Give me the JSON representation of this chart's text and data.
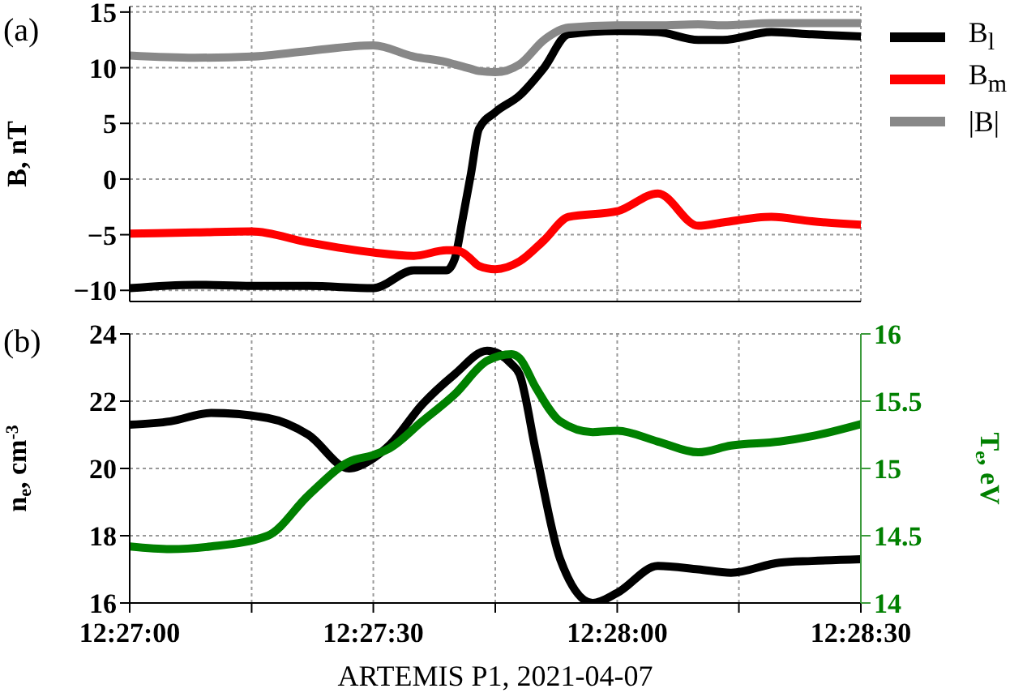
{
  "chart_data": [
    {
      "type": "line",
      "ylabel": "B, nT",
      "annotations": [
        "(a)"
      ],
      "x": [
        12.45,
        12.45222,
        12.45417,
        12.45611,
        12.45833,
        12.45972,
        12.46083,
        12.46111,
        12.46139,
        12.46167,
        12.46194,
        12.4625,
        12.46333,
        12.46417,
        12.465,
        12.46667,
        12.46806,
        12.46944,
        12.47028,
        12.47194,
        12.47333,
        12.475
      ],
      "series": [
        {
          "name": "B$_{l}$",
          "color": "#000000",
          "values": [
            -9.8,
            -9.5,
            -9.6,
            -9.6,
            -9.8,
            -8.2,
            -8.2,
            -7.2,
            -3.5,
            0.5,
            4.5,
            6,
            7.5,
            10,
            13,
            13.3,
            13.2,
            12.5,
            12.5,
            13.2,
            13,
            12.8
          ]
        },
        {
          "name": "B$_{m}$",
          "color": "#ff0000",
          "values": [
            -4.9,
            -4.8,
            -4.7,
            -5.7,
            -6.6,
            -6.9,
            -6.4,
            -6.4,
            -6.6,
            -7.2,
            -7.8,
            -8.1,
            -7.4,
            -5.5,
            -3.4,
            -2.9,
            -1.3,
            -4.2,
            -3.9,
            -3.4,
            -3.8,
            -4.1
          ]
        },
        {
          "name": "|B|",
          "color": "#888888",
          "values": [
            11.1,
            10.9,
            11,
            11.5,
            12,
            11,
            10.5,
            10.3,
            10.1,
            9.9,
            9.7,
            9.6,
            10.3,
            12.5,
            13.6,
            13.8,
            13.8,
            13.9,
            13.8,
            14,
            14,
            14
          ]
        }
      ],
      "xlim": [
        12.45,
        12.475
      ],
      "xticks": [
        {
          "value": 12.45,
          "label": null
        },
        {
          "value": 12.45417,
          "label": null
        },
        {
          "value": 12.45833,
          "label": null
        },
        {
          "value": 12.4625,
          "label": null
        },
        {
          "value": 12.46667,
          "label": null
        },
        {
          "value": 12.47083,
          "label": null
        },
        {
          "value": 12.475,
          "label": null
        }
      ],
      "ylim": [
        -11,
        15.5
      ],
      "yticks": [
        -10,
        -5,
        0,
        5,
        10,
        15
      ],
      "tick_labels": "y",
      "grid": true,
      "legend": "right",
      "line_style": "solid",
      "marker": "none"
    },
    {
      "type": "line",
      "ylabel": "n$_{e}$, cm$^{-3}$",
      "y2label": "T$_{e}$, eV",
      "xlabel": "ARTEMIS P1, 2021-04-07",
      "annotations": [
        "(b)"
      ],
      "x": [
        12.45,
        12.45139,
        12.45278,
        12.45472,
        12.45611,
        12.4575,
        12.45833,
        12.45889,
        12.46,
        12.46111,
        12.46222,
        12.46306,
        12.46333,
        12.46389,
        12.46472,
        12.46583,
        12.46667,
        12.46806,
        12.46944,
        12.47056,
        12.47222,
        12.47333,
        12.475
      ],
      "series": [
        {
          "color": "#000000",
          "values": [
            21.3,
            21.4,
            21.65,
            21.5,
            21,
            20,
            20.3,
            20.7,
            21.9,
            22.8,
            23.5,
            23.1,
            22.8,
            20.5,
            17.3,
            16,
            16.3,
            17.1,
            17,
            16.9,
            17.2,
            17.25,
            17.3
          ]
        },
        {
          "color": "#008000",
          "axis": "y2",
          "values": [
            14.42,
            14.4,
            14.42,
            14.5,
            14.8,
            15.05,
            15.1,
            15.15,
            15.35,
            15.55,
            15.8,
            15.85,
            15.82,
            15.6,
            15.35,
            15.27,
            15.28,
            15.2,
            15.12,
            15.17,
            15.2,
            15.24,
            15.33
          ]
        }
      ],
      "xlim": [
        12.45,
        12.475
      ],
      "xticks": [
        {
          "value": 12.45,
          "label": "12:27:00"
        },
        {
          "value": 12.45417,
          "label": null
        },
        {
          "value": 12.45833,
          "label": "12:27:30"
        },
        {
          "value": 12.4625,
          "label": null
        },
        {
          "value": 12.46667,
          "label": "12:28:00"
        },
        {
          "value": 12.47083,
          "label": null
        },
        {
          "value": 12.475,
          "label": "12:28:30"
        }
      ],
      "ylim": [
        16,
        24
      ],
      "yticks": [
        16,
        18,
        20,
        22,
        24
      ],
      "y2lim": [
        14,
        16
      ],
      "y2ticks": [
        14,
        14.5,
        15,
        15.5,
        16
      ],
      "grid": true,
      "legend": false,
      "line_style": "solid",
      "marker": "none"
    }
  ]
}
